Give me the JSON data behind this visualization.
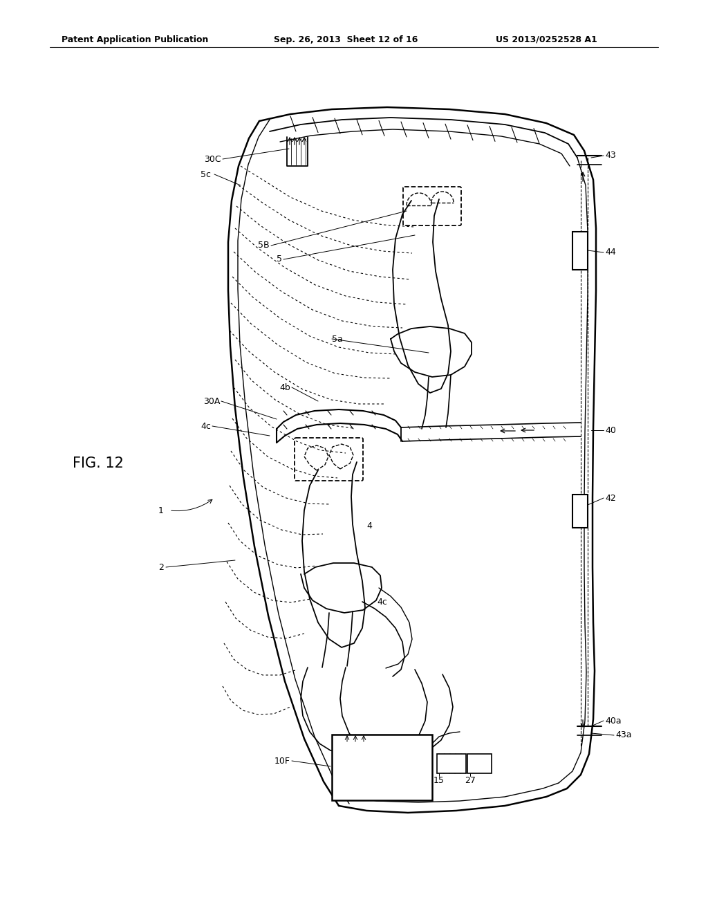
{
  "header_left": "Patent Application Publication",
  "header_mid": "Sep. 26, 2013  Sheet 12 of 16",
  "header_right": "US 2013/0252528 A1",
  "fig_label": "FIG. 12",
  "background_color": "#ffffff",
  "labels": {
    "1": "1",
    "2": "2",
    "4": "4",
    "4b": "4b",
    "4c_1": "4c",
    "4c_2": "4c",
    "5": "5",
    "5a": "5a",
    "5B": "5B",
    "5c": "5c",
    "10F": "10F",
    "15": "15",
    "27": "27",
    "30A": "30A",
    "30C": "30C",
    "40": "40",
    "40a": "40a",
    "42": "42",
    "43": "43",
    "43a": "43a",
    "44": "44"
  }
}
